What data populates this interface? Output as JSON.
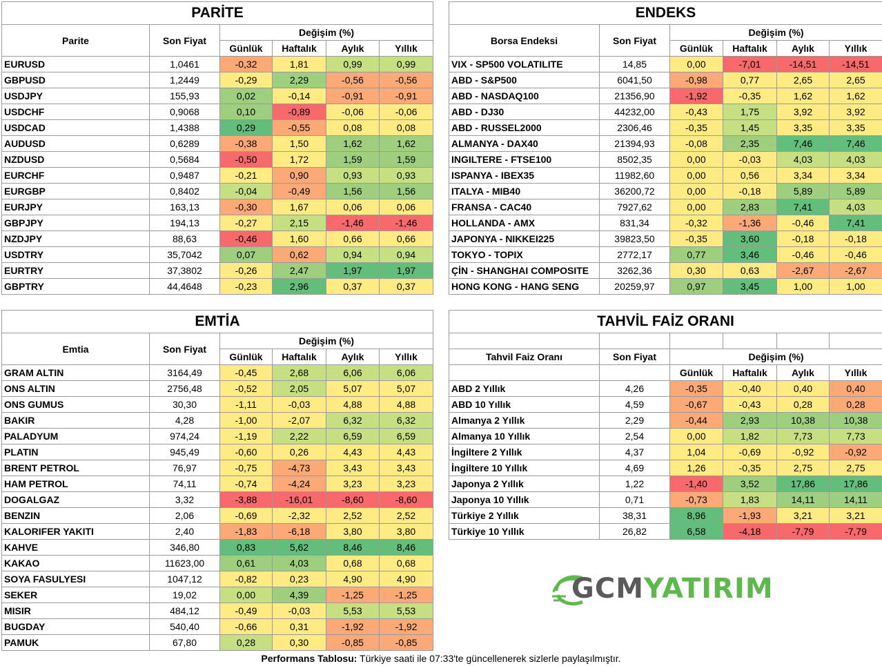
{
  "colors": {
    "red": "#f8696b",
    "orange": "#fbaa77",
    "yellow": "#ffeb84",
    "lgreen": "#c5df82",
    "green": "#9dcf7e",
    "dgreen": "#63be7b",
    "white": "#ffffff"
  },
  "common": {
    "son_fiyat": "Son Fiyat",
    "degisim": "Değişim (%)",
    "gunluk": "Günlük",
    "haftalik": "Haftalık",
    "aylik": "Aylık",
    "yillik": "Yıllık"
  },
  "parite": {
    "title": "PARİTE",
    "col_name": "Parite",
    "rows": [
      {
        "name": "EURUSD",
        "price": "1,0461",
        "d": "-0,32",
        "w": "1,81",
        "m": "0,99",
        "y": "0,99",
        "c": [
          "orange",
          "yellow",
          "lgreen",
          "lgreen"
        ]
      },
      {
        "name": "GBPUSD",
        "price": "1,2449",
        "d": "-0,29",
        "w": "2,29",
        "m": "-0,56",
        "y": "-0,56",
        "c": [
          "yellow",
          "green",
          "orange",
          "orange"
        ]
      },
      {
        "name": "USDJPY",
        "price": "155,93",
        "d": "0,02",
        "w": "-0,14",
        "m": "-0,91",
        "y": "-0,91",
        "c": [
          "green",
          "yellow",
          "orange",
          "orange"
        ]
      },
      {
        "name": "USDCHF",
        "price": "0,9068",
        "d": "0,10",
        "w": "-0,89",
        "m": "-0,06",
        "y": "-0,06",
        "c": [
          "green",
          "red",
          "yellow",
          "yellow"
        ]
      },
      {
        "name": "USDCAD",
        "price": "1,4388",
        "d": "0,29",
        "w": "-0,55",
        "m": "0,08",
        "y": "0,08",
        "c": [
          "dgreen",
          "orange",
          "yellow",
          "yellow"
        ]
      },
      {
        "name": "AUDUSD",
        "price": "0,6289",
        "d": "-0,38",
        "w": "1,50",
        "m": "1,62",
        "y": "1,62",
        "c": [
          "orange",
          "yellow",
          "green",
          "green"
        ]
      },
      {
        "name": "NZDUSD",
        "price": "0,5684",
        "d": "-0,50",
        "w": "1,72",
        "m": "1,59",
        "y": "1,59",
        "c": [
          "red",
          "yellow",
          "green",
          "green"
        ]
      },
      {
        "name": "EURCHF",
        "price": "0,9487",
        "d": "-0,21",
        "w": "0,90",
        "m": "0,93",
        "y": "0,93",
        "c": [
          "yellow",
          "orange",
          "lgreen",
          "lgreen"
        ]
      },
      {
        "name": "EURGBP",
        "price": "0,8402",
        "d": "-0,04",
        "w": "-0,49",
        "m": "1,56",
        "y": "1,56",
        "c": [
          "lgreen",
          "orange",
          "green",
          "green"
        ]
      },
      {
        "name": "EURJPY",
        "price": "163,13",
        "d": "-0,30",
        "w": "1,67",
        "m": "0,06",
        "y": "0,06",
        "c": [
          "orange",
          "yellow",
          "yellow",
          "yellow"
        ]
      },
      {
        "name": "GBPJPY",
        "price": "194,13",
        "d": "-0,27",
        "w": "2,15",
        "m": "-1,46",
        "y": "-1,46",
        "c": [
          "yellow",
          "lgreen",
          "red",
          "red"
        ]
      },
      {
        "name": "NZDJPY",
        "price": "88,63",
        "d": "-0,46",
        "w": "1,60",
        "m": "0,66",
        "y": "0,66",
        "c": [
          "red",
          "yellow",
          "yellow",
          "yellow"
        ]
      },
      {
        "name": "USDTRY",
        "price": "35,7042",
        "d": "0,07",
        "w": "0,62",
        "m": "0,94",
        "y": "0,94",
        "c": [
          "green",
          "orange",
          "lgreen",
          "lgreen"
        ]
      },
      {
        "name": "EURTRY",
        "price": "37,3802",
        "d": "-0,26",
        "w": "2,47",
        "m": "1,97",
        "y": "1,97",
        "c": [
          "yellow",
          "green",
          "dgreen",
          "dgreen"
        ]
      },
      {
        "name": "GBPTRY",
        "price": "44,4648",
        "d": "-0,23",
        "w": "2,96",
        "m": "0,37",
        "y": "0,37",
        "c": [
          "yellow",
          "dgreen",
          "yellow",
          "yellow"
        ]
      }
    ]
  },
  "endeks": {
    "title": "ENDEKS",
    "col_name": "Borsa Endeksi",
    "rows": [
      {
        "name": "VIX  - SP500 VOLATILITE",
        "price": "14,85",
        "d": "0,00",
        "w": "-7,01",
        "m": "-14,51",
        "y": "-14,51",
        "c": [
          "yellow",
          "red",
          "red",
          "red"
        ]
      },
      {
        "name": "ABD - S&P500",
        "price": "6041,50",
        "d": "-0,98",
        "w": "0,77",
        "m": "2,65",
        "y": "2,65",
        "c": [
          "orange",
          "yellow",
          "yellow",
          "yellow"
        ]
      },
      {
        "name": "ABD - NASDAQ100",
        "price": "21356,90",
        "d": "-1,92",
        "w": "-0,35",
        "m": "1,62",
        "y": "1,62",
        "c": [
          "red",
          "yellow",
          "yellow",
          "yellow"
        ]
      },
      {
        "name": "ABD - DJ30",
        "price": "44232,00",
        "d": "-0,43",
        "w": "1,75",
        "m": "3,92",
        "y": "3,92",
        "c": [
          "yellow",
          "lgreen",
          "yellow",
          "yellow"
        ]
      },
      {
        "name": "ABD - RUSSEL2000",
        "price": "2306,46",
        "d": "-0,35",
        "w": "1,45",
        "m": "3,35",
        "y": "3,35",
        "c": [
          "yellow",
          "lgreen",
          "yellow",
          "yellow"
        ]
      },
      {
        "name": "ALMANYA - DAX40",
        "price": "21394,93",
        "d": "-0,08",
        "w": "2,35",
        "m": "7,46",
        "y": "7,46",
        "c": [
          "yellow",
          "green",
          "dgreen",
          "dgreen"
        ]
      },
      {
        "name": "INGILTERE - FTSE100",
        "price": "8502,35",
        "d": "0,00",
        "w": "-0,03",
        "m": "4,03",
        "y": "4,03",
        "c": [
          "yellow",
          "yellow",
          "lgreen",
          "lgreen"
        ]
      },
      {
        "name": "ISPANYA - IBEX35",
        "price": "11982,60",
        "d": "0,00",
        "w": "0,56",
        "m": "3,34",
        "y": "3,34",
        "c": [
          "yellow",
          "yellow",
          "yellow",
          "yellow"
        ]
      },
      {
        "name": "ITALYA - MIB40",
        "price": "36200,72",
        "d": "0,00",
        "w": "-0,18",
        "m": "5,89",
        "y": "5,89",
        "c": [
          "yellow",
          "yellow",
          "green",
          "green"
        ]
      },
      {
        "name": "FRANSA - CAC40",
        "price": "7927,62",
        "d": "0,00",
        "w": "2,83",
        "m": "7,41",
        "y": "4,03",
        "c": [
          "yellow",
          "green",
          "dgreen",
          "lgreen"
        ]
      },
      {
        "name": "HOLLANDA - AMX",
        "price": "831,34",
        "d": "-0,32",
        "w": "-1,36",
        "m": "-0,46",
        "y": "7,41",
        "c": [
          "yellow",
          "orange",
          "yellow",
          "dgreen"
        ]
      },
      {
        "name": "JAPONYA - NIKKEI225",
        "price": "39823,50",
        "d": "-0,35",
        "w": "3,60",
        "m": "-0,18",
        "y": "-0,18",
        "c": [
          "yellow",
          "dgreen",
          "yellow",
          "yellow"
        ]
      },
      {
        "name": "TOKYO - TOPIX",
        "price": "2772,17",
        "d": "0,77",
        "w": "3,46",
        "m": "-0,46",
        "y": "-0,46",
        "c": [
          "green",
          "dgreen",
          "yellow",
          "yellow"
        ]
      },
      {
        "name": "ÇİN - SHANGHAI COMPOSITE",
        "price": "3262,36",
        "d": "0,30",
        "w": "0,63",
        "m": "-2,67",
        "y": "-2,67",
        "c": [
          "yellow",
          "yellow",
          "orange",
          "orange"
        ]
      },
      {
        "name": "HONG KONG - HANG SENG",
        "price": "20259,97",
        "d": "0,97",
        "w": "3,45",
        "m": "1,00",
        "y": "1,00",
        "c": [
          "green",
          "dgreen",
          "yellow",
          "yellow"
        ]
      }
    ]
  },
  "emtia": {
    "title": "EMTİA",
    "col_name": "Emtia",
    "rows": [
      {
        "name": "GRAM ALTIN",
        "price": "3164,49",
        "d": "-0,45",
        "w": "2,68",
        "m": "6,06",
        "y": "6,06",
        "c": [
          "yellow",
          "lgreen",
          "lgreen",
          "lgreen"
        ]
      },
      {
        "name": "ONS ALTIN",
        "price": "2756,48",
        "d": "-0,52",
        "w": "2,05",
        "m": "5,07",
        "y": "5,07",
        "c": [
          "yellow",
          "lgreen",
          "yellow",
          "yellow"
        ]
      },
      {
        "name": "ONS GUMUS",
        "price": "30,30",
        "d": "-1,11",
        "w": "-0,03",
        "m": "4,88",
        "y": "4,88",
        "c": [
          "yellow",
          "yellow",
          "yellow",
          "yellow"
        ]
      },
      {
        "name": "BAKIR",
        "price": "4,28",
        "d": "-1,00",
        "w": "-2,07",
        "m": "6,32",
        "y": "6,32",
        "c": [
          "yellow",
          "yellow",
          "lgreen",
          "lgreen"
        ]
      },
      {
        "name": "PALADYUM",
        "price": "974,24",
        "d": "-1,19",
        "w": "2,22",
        "m": "6,59",
        "y": "6,59",
        "c": [
          "yellow",
          "lgreen",
          "lgreen",
          "lgreen"
        ]
      },
      {
        "name": "PLATIN",
        "price": "945,49",
        "d": "-0,60",
        "w": "0,26",
        "m": "4,43",
        "y": "4,43",
        "c": [
          "yellow",
          "yellow",
          "yellow",
          "yellow"
        ]
      },
      {
        "name": "BRENT PETROL",
        "price": "76,97",
        "d": "-0,75",
        "w": "-4,73",
        "m": "3,43",
        "y": "3,43",
        "c": [
          "yellow",
          "orange",
          "yellow",
          "yellow"
        ]
      },
      {
        "name": "HAM PETROL",
        "price": "74,11",
        "d": "-0,74",
        "w": "-4,24",
        "m": "3,23",
        "y": "3,23",
        "c": [
          "yellow",
          "orange",
          "yellow",
          "yellow"
        ]
      },
      {
        "name": "DOGALGAZ",
        "price": "3,32",
        "d": "-3,88",
        "w": "-16,01",
        "m": "-8,60",
        "y": "-8,60",
        "c": [
          "red",
          "red",
          "red",
          "red"
        ]
      },
      {
        "name": "BENZIN",
        "price": "2,06",
        "d": "-0,69",
        "w": "-2,32",
        "m": "2,52",
        "y": "2,52",
        "c": [
          "yellow",
          "yellow",
          "yellow",
          "yellow"
        ]
      },
      {
        "name": "KALORIFER YAKITI",
        "price": "2,40",
        "d": "-1,83",
        "w": "-6,18",
        "m": "3,80",
        "y": "3,80",
        "c": [
          "orange",
          "orange",
          "yellow",
          "yellow"
        ]
      },
      {
        "name": "KAHVE",
        "price": "346,80",
        "d": "0,83",
        "w": "5,62",
        "m": "8,46",
        "y": "8,46",
        "c": [
          "dgreen",
          "dgreen",
          "dgreen",
          "dgreen"
        ]
      },
      {
        "name": "KAKAO",
        "price": "11623,00",
        "d": "0,61",
        "w": "4,03",
        "m": "0,68",
        "y": "0,68",
        "c": [
          "green",
          "green",
          "yellow",
          "yellow"
        ]
      },
      {
        "name": "SOYA FASULYESI",
        "price": "1047,12",
        "d": "-0,82",
        "w": "0,23",
        "m": "4,90",
        "y": "4,90",
        "c": [
          "yellow",
          "yellow",
          "yellow",
          "yellow"
        ]
      },
      {
        "name": "SEKER",
        "price": "19,02",
        "d": "0,00",
        "w": "4,39",
        "m": "-1,25",
        "y": "-1,25",
        "c": [
          "lgreen",
          "green",
          "orange",
          "orange"
        ]
      },
      {
        "name": "MISIR",
        "price": "484,12",
        "d": "-0,49",
        "w": "-0,03",
        "m": "5,53",
        "y": "5,53",
        "c": [
          "yellow",
          "yellow",
          "lgreen",
          "lgreen"
        ]
      },
      {
        "name": "BUGDAY",
        "price": "540,40",
        "d": "-0,66",
        "w": "0,31",
        "m": "-1,92",
        "y": "-1,92",
        "c": [
          "yellow",
          "yellow",
          "orange",
          "orange"
        ]
      },
      {
        "name": "PAMUK",
        "price": "67,80",
        "d": "0,28",
        "w": "0,30",
        "m": "-0,85",
        "y": "-0,85",
        "c": [
          "lgreen",
          "yellow",
          "orange",
          "orange"
        ]
      }
    ]
  },
  "tahvil": {
    "title": "TAHVİL FAİZ ORANI",
    "col_name": "Tahvil Faiz Oranı",
    "rows": [
      {
        "name": "ABD 2 Yıllık",
        "price": "4,26",
        "d": "-0,35",
        "w": "-0,40",
        "m": "0,40",
        "y": "0,40",
        "c": [
          "orange",
          "yellow",
          "yellow",
          "orange"
        ]
      },
      {
        "name": "ABD 10 Yıllık",
        "price": "4,59",
        "d": "-0,67",
        "w": "-0,43",
        "m": "0,28",
        "y": "0,28",
        "c": [
          "orange",
          "yellow",
          "yellow",
          "orange"
        ]
      },
      {
        "name": "Almanya 2 Yıllık",
        "price": "2,29",
        "d": "-0,44",
        "w": "2,93",
        "m": "10,38",
        "y": "10,38",
        "c": [
          "orange",
          "green",
          "green",
          "green"
        ]
      },
      {
        "name": "Almanya 10 Yıllık",
        "price": "2,54",
        "d": "0,00",
        "w": "1,82",
        "m": "7,73",
        "y": "7,73",
        "c": [
          "yellow",
          "lgreen",
          "lgreen",
          "lgreen"
        ]
      },
      {
        "name": "İngiltere 2 Yıllık",
        "price": "4,37",
        "d": "1,04",
        "w": "-0,69",
        "m": "-0,92",
        "y": "-0,92",
        "c": [
          "yellow",
          "yellow",
          "yellow",
          "orange"
        ]
      },
      {
        "name": "İngiltere 10 Yıllık",
        "price": "4,69",
        "d": "1,26",
        "w": "-0,35",
        "m": "2,75",
        "y": "2,75",
        "c": [
          "yellow",
          "yellow",
          "yellow",
          "yellow"
        ]
      },
      {
        "name": "Japonya 2 Yıllık",
        "price": "1,22",
        "d": "-1,40",
        "w": "3,52",
        "m": "17,86",
        "y": "17,86",
        "c": [
          "red",
          "green",
          "dgreen",
          "dgreen"
        ]
      },
      {
        "name": "Japonya 10 Yıllık",
        "price": "0,71",
        "d": "-0,73",
        "w": "1,83",
        "m": "14,11",
        "y": "14,11",
        "c": [
          "orange",
          "lgreen",
          "green",
          "green"
        ]
      },
      {
        "name": "Türkiye 2 Yıllık",
        "price": "38,31",
        "d": "8,96",
        "w": "-1,93",
        "m": "3,21",
        "y": "3,21",
        "c": [
          "dgreen",
          "orange",
          "yellow",
          "yellow"
        ]
      },
      {
        "name": "Türkiye 10 Yıllık",
        "price": "26,82",
        "d": "6,58",
        "w": "-4,18",
        "m": "-7,79",
        "y": "-7,79",
        "c": [
          "dgreen",
          "red",
          "red",
          "red"
        ]
      }
    ]
  },
  "logo": {
    "part1": "GCM",
    "part2": "YATIRIM"
  },
  "footer": {
    "bold": "Performans Tablosu:",
    "text": " Türkiye saati ile 07:33'te güncellenerek sizlerle paylaşılmıştır."
  }
}
